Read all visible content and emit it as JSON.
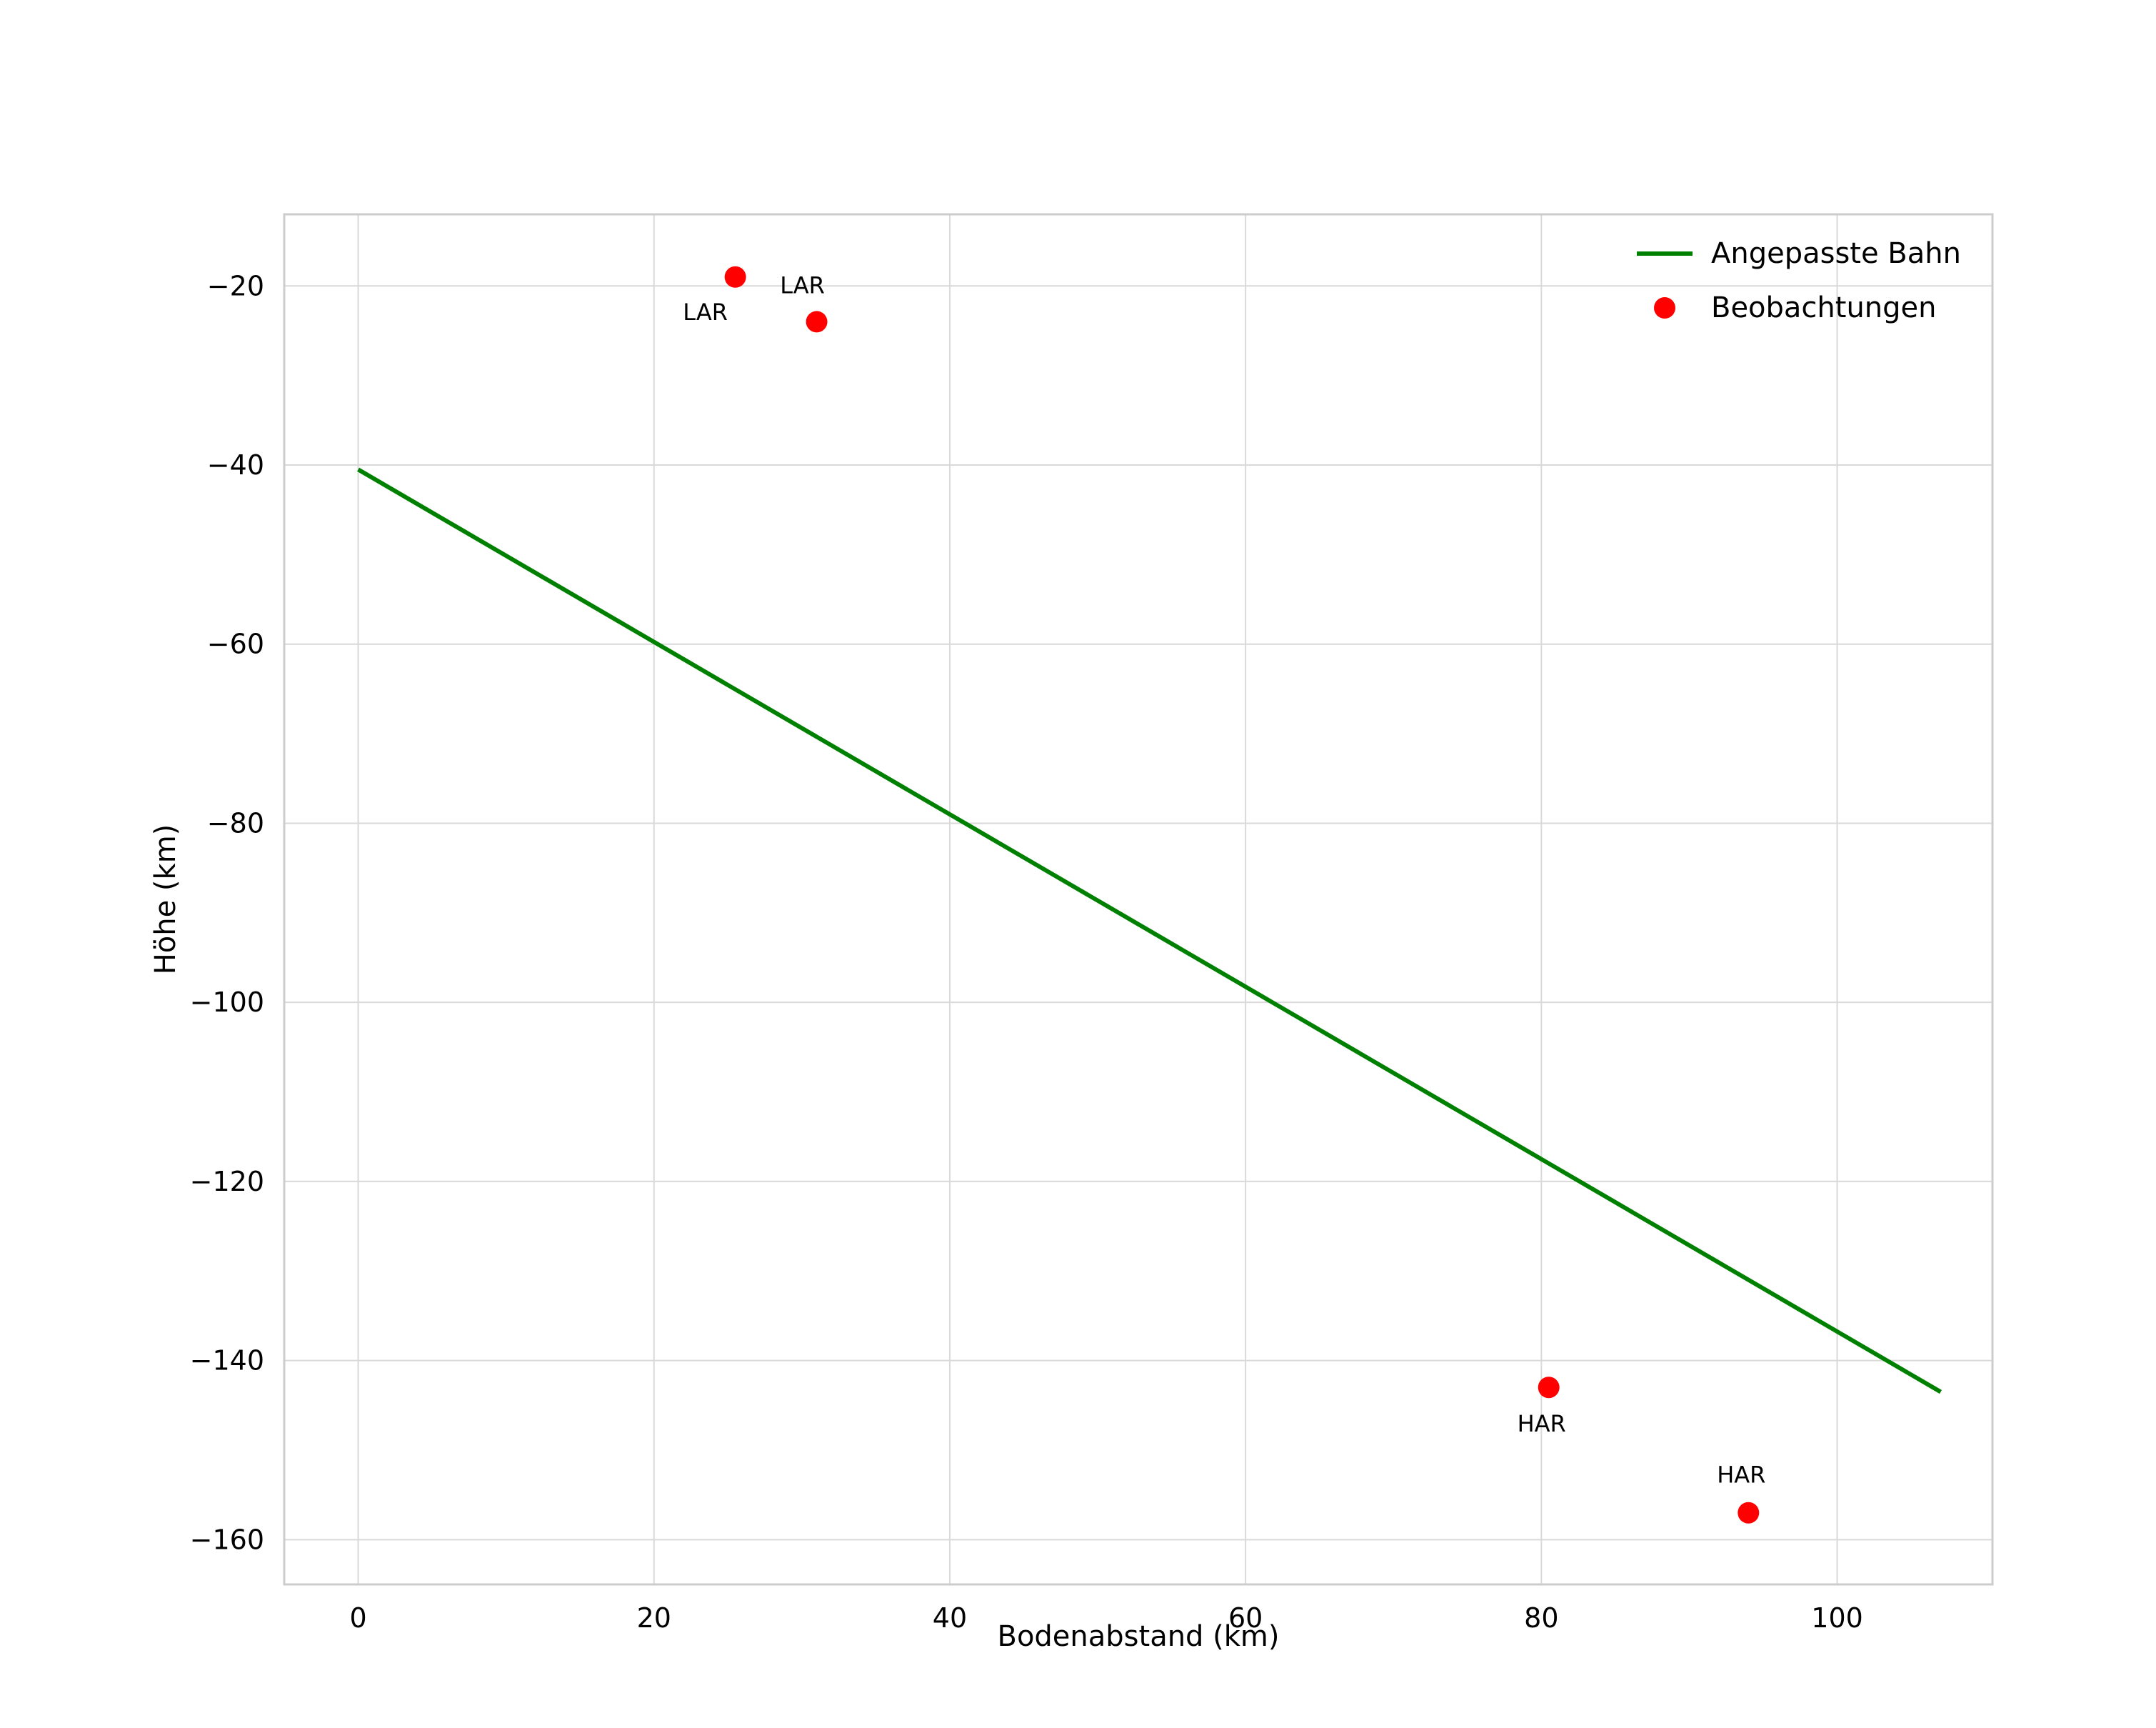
{
  "chart_data": {
    "type": "scatter",
    "title": "",
    "xlabel": "Bodenabstand (km)",
    "ylabel": "Höhe (km)",
    "xlim": [
      -5,
      110.5
    ],
    "ylim": [
      -165,
      -12
    ],
    "xticks": [
      0,
      20,
      40,
      60,
      80,
      100
    ],
    "yticks": [
      -20,
      -40,
      -60,
      -80,
      -100,
      -120,
      -140,
      -160
    ],
    "grid": true,
    "colors": {
      "line": "#008000",
      "points": "#ff0000",
      "grid": "#d9d9d9",
      "frame": "#cccccc",
      "text": "#000000"
    },
    "legend": {
      "position": "top-right",
      "entries": [
        {
          "label": "Angepasste Bahn",
          "type": "line",
          "color": "#008000"
        },
        {
          "label": "Beobachtungen",
          "type": "point",
          "color": "#ff0000"
        }
      ]
    },
    "line_series": {
      "name": "Angepasste Bahn",
      "color": "#008000",
      "points": [
        [
          0,
          -40.5
        ],
        [
          107,
          -143.5
        ]
      ]
    },
    "scatter_series": {
      "name": "Beobachtungen",
      "color": "#ff0000",
      "points": [
        {
          "x": 25.5,
          "y": -19,
          "label": "LAR",
          "label_offset": [
            -42,
            60
          ]
        },
        {
          "x": 31,
          "y": -24,
          "label": "LAR",
          "label_offset": [
            -20,
            -40
          ]
        },
        {
          "x": 80.5,
          "y": -143,
          "label": "HAR",
          "label_offset": [
            -10,
            62
          ]
        },
        {
          "x": 94,
          "y": -157,
          "label": "HAR",
          "label_offset": [
            -10,
            -42
          ]
        }
      ]
    }
  }
}
